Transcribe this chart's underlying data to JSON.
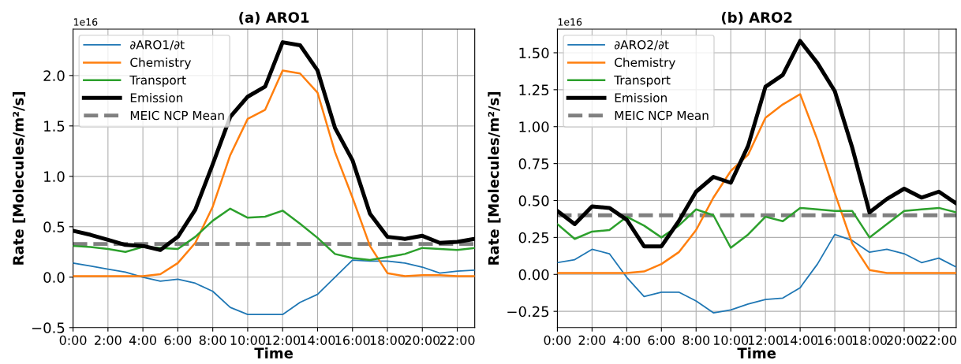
{
  "chart_data": [
    {
      "type": "line",
      "title": "(a) ARO1",
      "xlabel": "Time",
      "ylabel": "Rate [Molecules/m²/s]",
      "annotations": [
        "1e16"
      ],
      "x": [
        0,
        1,
        2,
        3,
        4,
        5,
        6,
        7,
        8,
        9,
        10,
        11,
        12,
        13,
        14,
        15,
        16,
        17,
        18,
        19,
        20,
        21,
        22,
        23
      ],
      "series": [
        {
          "name": "∂ARO1/∂t",
          "color": "#1f77b4",
          "values": [
            0.14,
            0.11,
            0.08,
            0.05,
            0.0,
            -0.04,
            -0.02,
            -0.06,
            -0.14,
            -0.3,
            -0.37,
            -0.37,
            -0.37,
            -0.25,
            -0.17,
            0.0,
            0.17,
            0.16,
            0.16,
            0.14,
            0.1,
            0.04,
            0.06,
            0.07
          ]
        },
        {
          "name": "Chemistry",
          "color": "#ff7f0e",
          "values": [
            0.01,
            0.01,
            0.01,
            0.01,
            0.01,
            0.03,
            0.14,
            0.34,
            0.7,
            1.21,
            1.57,
            1.66,
            2.05,
            2.02,
            1.83,
            1.24,
            0.79,
            0.31,
            0.04,
            0.01,
            0.02,
            0.02,
            0.01,
            0.01
          ]
        },
        {
          "name": "Transport",
          "color": "#2ca02c",
          "values": [
            0.31,
            0.3,
            0.28,
            0.25,
            0.3,
            0.29,
            0.28,
            0.4,
            0.56,
            0.68,
            0.59,
            0.6,
            0.66,
            0.53,
            0.39,
            0.23,
            0.19,
            0.17,
            0.2,
            0.23,
            0.29,
            0.28,
            0.27,
            0.29
          ]
        },
        {
          "name": "Emission",
          "color": "#000000",
          "values": [
            0.46,
            0.42,
            0.37,
            0.32,
            0.31,
            0.27,
            0.4,
            0.67,
            1.12,
            1.59,
            1.79,
            1.89,
            2.33,
            2.3,
            2.05,
            1.48,
            1.16,
            0.63,
            0.4,
            0.38,
            0.41,
            0.34,
            0.35,
            0.38
          ]
        }
      ],
      "ref_lines": [
        {
          "axis": "y",
          "value": 0.33,
          "label": "MEIC NCP Mean",
          "color": "#808080",
          "line_style": "dashed"
        }
      ],
      "xlim": [
        0,
        23
      ],
      "xticks": [
        {
          "value": 0,
          "label": "0:00"
        },
        {
          "value": 2,
          "label": "2:00"
        },
        {
          "value": 4,
          "label": "4:00"
        },
        {
          "value": 6,
          "label": "6:00"
        },
        {
          "value": 8,
          "label": "8:00"
        },
        {
          "value": 10,
          "label": "10:00"
        },
        {
          "value": 12,
          "label": "12:00"
        },
        {
          "value": 14,
          "label": "14:00"
        },
        {
          "value": 16,
          "label": "16:00"
        },
        {
          "value": 18,
          "label": "18:00"
        },
        {
          "value": 20,
          "label": "20:00"
        },
        {
          "value": 22,
          "label": "22:00"
        }
      ],
      "ylim": [
        -0.5,
        2.46
      ],
      "yticks": [
        {
          "value": -0.5,
          "label": "−0.5"
        },
        {
          "value": 0,
          "label": "0.0"
        },
        {
          "value": 0.5,
          "label": "0.5"
        },
        {
          "value": 1.0,
          "label": "1.0"
        },
        {
          "value": 1.5,
          "label": "1.5"
        },
        {
          "value": 2.0,
          "label": "2.0"
        }
      ],
      "grid": true,
      "legend": "top left",
      "line_style": "solid",
      "marker": "none"
    },
    {
      "type": "line",
      "title": "(b) ARO2",
      "xlabel": "Time",
      "ylabel": "Rate [Molecules/m²/s]",
      "annotations": [
        "1e16"
      ],
      "x": [
        0,
        1,
        2,
        3,
        4,
        5,
        6,
        7,
        8,
        9,
        10,
        11,
        12,
        13,
        14,
        15,
        16,
        17,
        18,
        19,
        20,
        21,
        22,
        23
      ],
      "series": [
        {
          "name": "∂ARO2/∂t",
          "color": "#1f77b4",
          "values": [
            0.08,
            0.1,
            0.17,
            0.14,
            -0.02,
            -0.15,
            -0.12,
            -0.12,
            -0.18,
            -0.26,
            -0.24,
            -0.2,
            -0.17,
            -0.16,
            -0.09,
            0.07,
            0.27,
            0.23,
            0.15,
            0.17,
            0.14,
            0.08,
            0.11,
            0.05
          ]
        },
        {
          "name": "Chemistry",
          "color": "#ff7f0e",
          "values": [
            0.01,
            0.01,
            0.01,
            0.01,
            0.01,
            0.02,
            0.07,
            0.15,
            0.3,
            0.52,
            0.7,
            0.81,
            1.06,
            1.15,
            1.22,
            0.91,
            0.55,
            0.21,
            0.03,
            0.01,
            0.01,
            0.01,
            0.01,
            0.01
          ]
        },
        {
          "name": "Transport",
          "color": "#2ca02c",
          "values": [
            0.34,
            0.24,
            0.29,
            0.3,
            0.39,
            0.33,
            0.25,
            0.33,
            0.44,
            0.4,
            0.18,
            0.27,
            0.39,
            0.36,
            0.45,
            0.44,
            0.43,
            0.43,
            0.25,
            0.34,
            0.43,
            0.44,
            0.45,
            0.42
          ]
        },
        {
          "name": "Emission",
          "color": "#000000",
          "values": [
            0.43,
            0.34,
            0.46,
            0.45,
            0.37,
            0.19,
            0.19,
            0.36,
            0.56,
            0.66,
            0.62,
            0.87,
            1.27,
            1.35,
            1.58,
            1.43,
            1.24,
            0.86,
            0.42,
            0.51,
            0.58,
            0.52,
            0.56,
            0.48
          ]
        }
      ],
      "ref_lines": [
        {
          "axis": "y",
          "value": 0.4,
          "label": "MEIC NCP Mean",
          "color": "#808080",
          "line_style": "dashed"
        }
      ],
      "xlim": [
        0,
        23
      ],
      "xticks": [
        {
          "value": 0,
          "label": "0:00"
        },
        {
          "value": 2,
          "label": "2:00"
        },
        {
          "value": 4,
          "label": "4:00"
        },
        {
          "value": 6,
          "label": "6:00"
        },
        {
          "value": 8,
          "label": "8:00"
        },
        {
          "value": 10,
          "label": "10:00"
        },
        {
          "value": 12,
          "label": "12:00"
        },
        {
          "value": 14,
          "label": "14:00"
        },
        {
          "value": 16,
          "label": "16:00"
        },
        {
          "value": 18,
          "label": "18:00"
        },
        {
          "value": 20,
          "label": "20:00"
        },
        {
          "value": 22,
          "label": "22:00"
        }
      ],
      "ylim": [
        -0.36,
        1.66
      ],
      "yticks": [
        {
          "value": -0.25,
          "label": "−0.25"
        },
        {
          "value": 0,
          "label": "0.00"
        },
        {
          "value": 0.25,
          "label": "0.25"
        },
        {
          "value": 0.5,
          "label": "0.50"
        },
        {
          "value": 0.75,
          "label": "0.75"
        },
        {
          "value": 1.0,
          "label": "1.00"
        },
        {
          "value": 1.25,
          "label": "1.25"
        },
        {
          "value": 1.5,
          "label": "1.50"
        }
      ],
      "grid": true,
      "legend": "top left",
      "line_style": "solid",
      "marker": "none"
    }
  ]
}
